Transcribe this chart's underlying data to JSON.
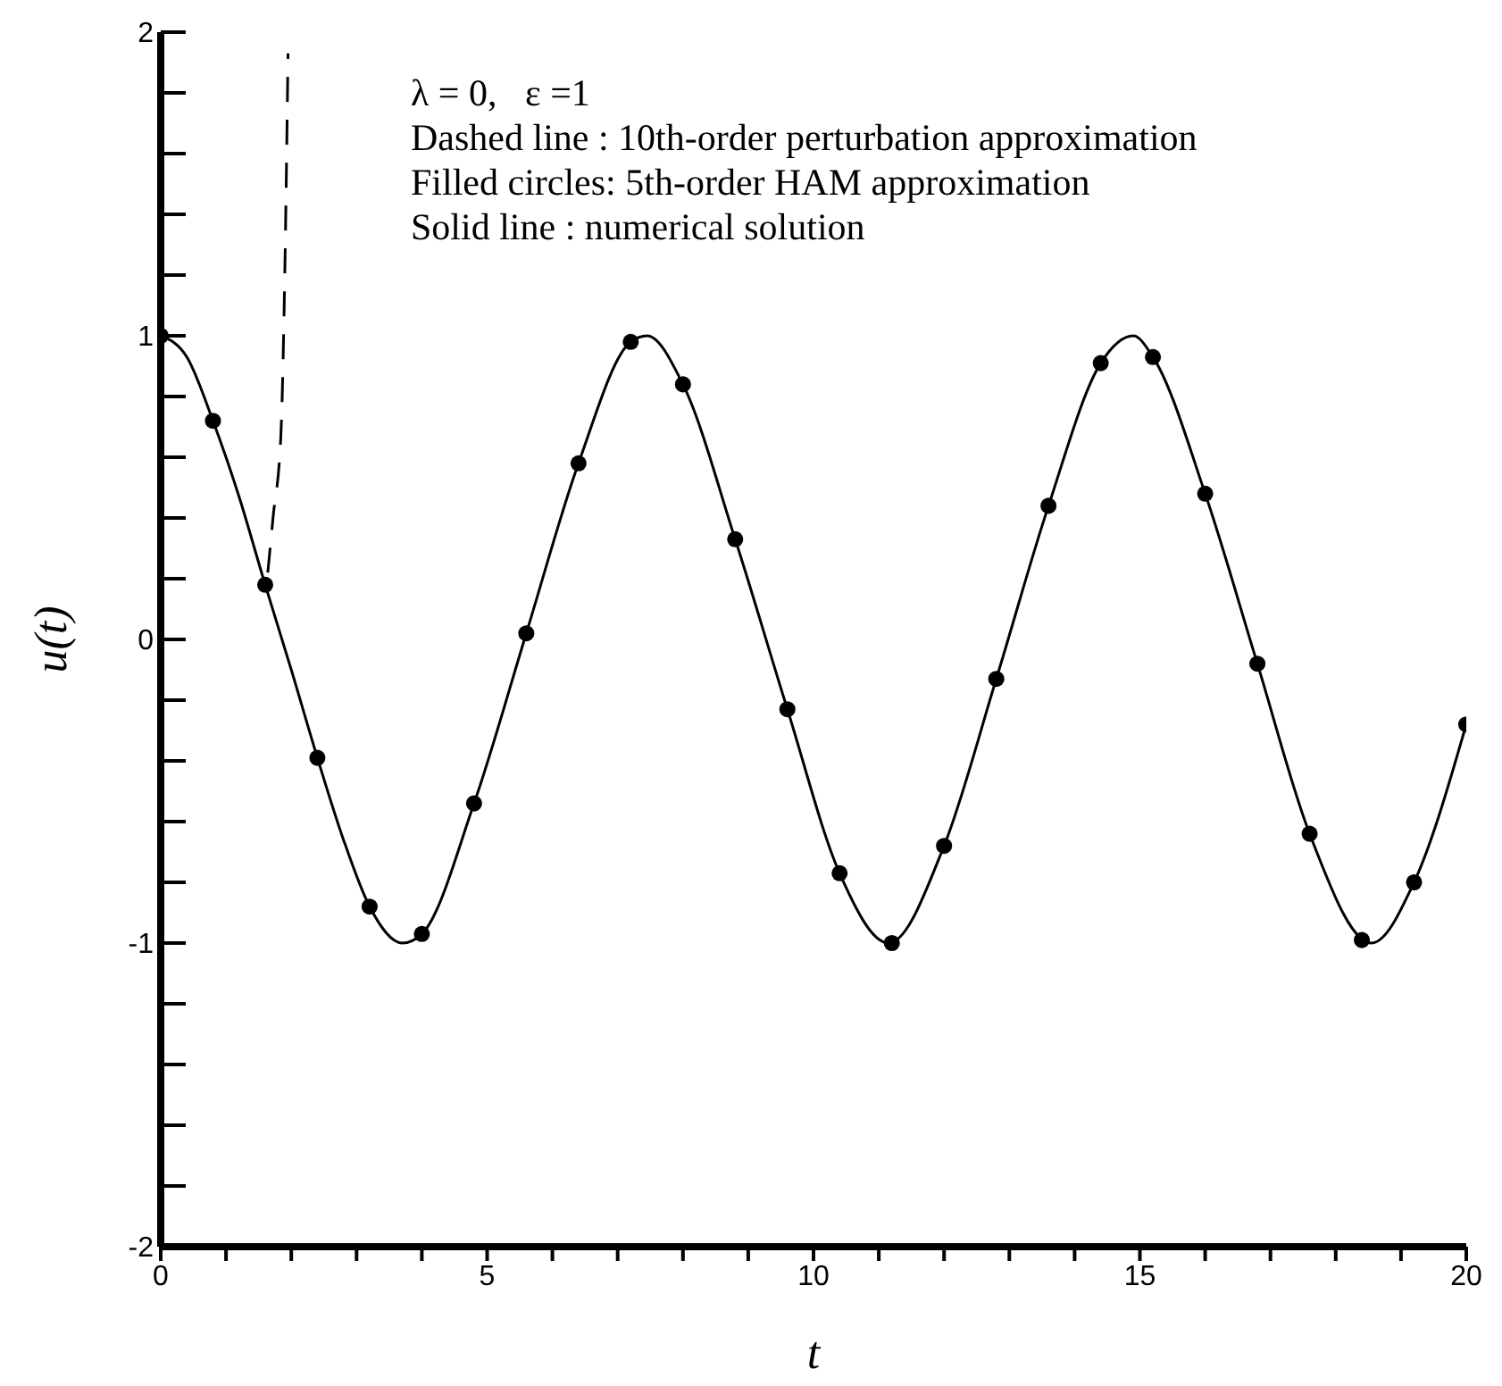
{
  "chart_data": {
    "type": "line",
    "xlabel": "t",
    "ylabel": "u(t)",
    "annotations": [
      "λ = 0,   ε =1",
      "Dashed line : 10th-order perturbation approximation",
      "Filled circles: 5th-order HAM approximation",
      "Solid line : numerical solution"
    ],
    "xlim": [
      0,
      20
    ],
    "ylim": [
      -2,
      2
    ],
    "xticks": [
      0,
      {
        "value": 1,
        "label": null
      },
      {
        "value": 2,
        "label": null
      },
      {
        "value": 3,
        "label": null
      },
      {
        "value": 4,
        "label": null
      },
      5,
      {
        "value": 6,
        "label": null
      },
      {
        "value": 7,
        "label": null
      },
      {
        "value": 8,
        "label": null
      },
      {
        "value": 9,
        "label": null
      },
      10,
      {
        "value": 11,
        "label": null
      },
      {
        "value": 12,
        "label": null
      },
      {
        "value": 13,
        "label": null
      },
      {
        "value": 14,
        "label": null
      },
      15,
      {
        "value": 16,
        "label": null
      },
      {
        "value": 17,
        "label": null
      },
      {
        "value": 18,
        "label": null
      },
      {
        "value": 19,
        "label": null
      },
      20
    ],
    "yticks": [
      -2,
      {
        "value": -1.8,
        "label": null
      },
      {
        "value": -1.6,
        "label": null
      },
      {
        "value": -1.4,
        "label": null
      },
      {
        "value": -1.2,
        "label": null
      },
      -1,
      {
        "value": -0.8,
        "label": null
      },
      {
        "value": -0.6,
        "label": null
      },
      {
        "value": -0.4,
        "label": null
      },
      {
        "value": -0.2,
        "label": null
      },
      0,
      {
        "value": 0.2,
        "label": null
      },
      {
        "value": 0.4,
        "label": null
      },
      {
        "value": 0.6,
        "label": null
      },
      {
        "value": 0.8,
        "label": null
      },
      1,
      {
        "value": 1.2,
        "label": null
      },
      {
        "value": 1.4,
        "label": null
      },
      {
        "value": 1.6,
        "label": null
      },
      {
        "value": 1.8,
        "label": null
      },
      2
    ],
    "grid": false,
    "legend": false,
    "series": [
      {
        "type": "line",
        "color": "#000000",
        "line_style": "solid",
        "marker": "none",
        "x": [
          0,
          0.4,
          0.8,
          1.2,
          1.6,
          2.0,
          2.4,
          2.8,
          3.2,
          3.7,
          4.0,
          4.8,
          5.6,
          6.4,
          7.2,
          7.45,
          8.0,
          8.8,
          9.6,
          10.4,
          11.15,
          12.0,
          12.8,
          13.6,
          14.4,
          14.9,
          15.2,
          16.0,
          16.8,
          17.6,
          18.55,
          19.2,
          20
        ],
        "values": [
          1,
          0.93,
          0.72,
          0.47,
          0.18,
          -0.1,
          -0.39,
          -0.66,
          -0.88,
          -1.0,
          -0.97,
          -0.54,
          0.02,
          0.58,
          0.98,
          1.0,
          0.84,
          0.33,
          -0.23,
          -0.77,
          -1.0,
          -0.68,
          -0.13,
          0.44,
          0.91,
          1.0,
          0.93,
          0.48,
          -0.08,
          -0.64,
          -1.0,
          -0.8,
          -0.28
        ]
      },
      {
        "type": "line",
        "color": "#000000",
        "line_style": "dashed",
        "marker": "none",
        "x": [
          1.64,
          1.72,
          1.84,
          1.9,
          1.95
        ],
        "values": [
          0.22,
          0.4,
          0.67,
          1.2,
          1.93
        ]
      },
      {
        "type": "scatter",
        "color": "#000000",
        "marker": "circle",
        "x": [
          0,
          0.8,
          1.6,
          2.4,
          3.2,
          4.0,
          4.8,
          5.6,
          6.4,
          7.2,
          8.0,
          8.8,
          9.6,
          10.4,
          11.2,
          12.0,
          12.8,
          13.6,
          14.4,
          15.2,
          16.0,
          16.8,
          17.6,
          18.4,
          19.2,
          20
        ],
        "values": [
          1,
          0.72,
          0.18,
          -0.39,
          -0.88,
          -0.97,
          -0.54,
          0.02,
          0.58,
          0.98,
          0.84,
          0.33,
          -0.23,
          -0.77,
          -1.0,
          -0.68,
          -0.13,
          0.44,
          0.91,
          0.93,
          0.48,
          -0.08,
          -0.64,
          -0.99,
          -0.8,
          -0.28
        ]
      }
    ]
  }
}
